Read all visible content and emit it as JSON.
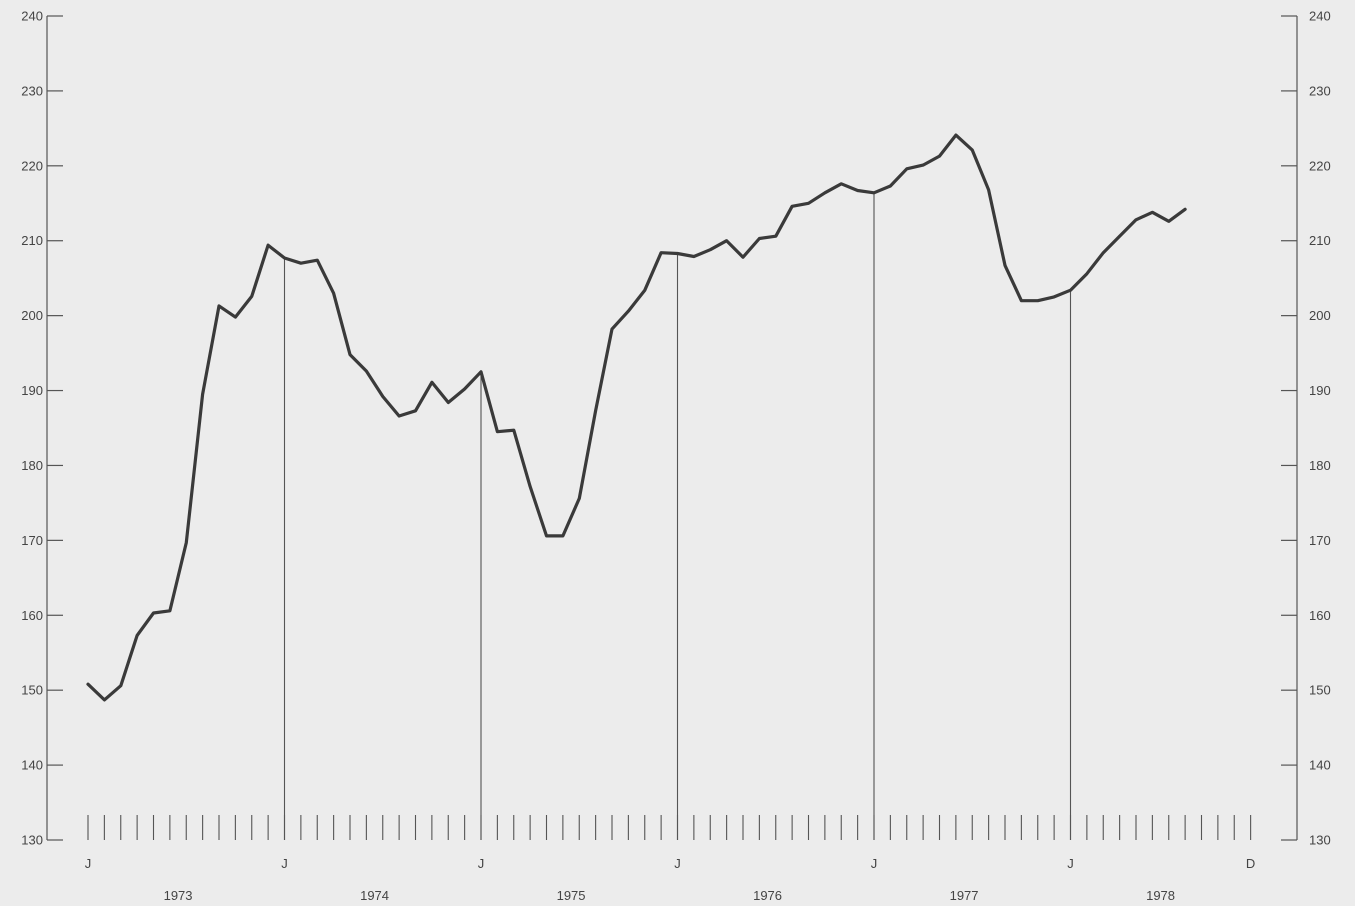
{
  "chart_data": {
    "type": "line",
    "title": "",
    "xlabel": "",
    "ylabel": "",
    "ylim": [
      130,
      240
    ],
    "yticks": [
      130,
      140,
      150,
      160,
      170,
      180,
      190,
      200,
      210,
      220,
      230,
      240
    ],
    "y_axes": [
      "left",
      "right"
    ],
    "grid": false,
    "year_dividers_at_january": true,
    "x_start": "1973-01",
    "x_end": "1978-12",
    "month_labels": [
      {
        "month": "1973-01",
        "label": "J"
      },
      {
        "month": "1974-01",
        "label": "J"
      },
      {
        "month": "1975-01",
        "label": "J"
      },
      {
        "month": "1976-01",
        "label": "J"
      },
      {
        "month": "1977-01",
        "label": "J"
      },
      {
        "month": "1978-01",
        "label": "J"
      },
      {
        "month": "1978-12",
        "label": "D"
      }
    ],
    "year_labels": [
      "1973",
      "1974",
      "1975",
      "1976",
      "1977",
      "1978"
    ],
    "series": [
      {
        "color": "#3a3a3a",
        "x": [
          "1973-01",
          "1973-02",
          "1973-03",
          "1973-04",
          "1973-05",
          "1973-06",
          "1973-07",
          "1973-08",
          "1973-09",
          "1973-10",
          "1973-11",
          "1973-12",
          "1974-01",
          "1974-02",
          "1974-03",
          "1974-04",
          "1974-05",
          "1974-06",
          "1974-07",
          "1974-08",
          "1974-09",
          "1974-10",
          "1974-11",
          "1974-12",
          "1975-01",
          "1975-02",
          "1975-03",
          "1975-04",
          "1975-05",
          "1975-06",
          "1975-07",
          "1975-08",
          "1975-09",
          "1975-10",
          "1975-11",
          "1975-12",
          "1976-01",
          "1976-02",
          "1976-03",
          "1976-04",
          "1976-05",
          "1976-06",
          "1976-07",
          "1976-08",
          "1976-09",
          "1976-10",
          "1976-11",
          "1976-12",
          "1977-01",
          "1977-02",
          "1977-03",
          "1977-04",
          "1977-05",
          "1977-06",
          "1977-07",
          "1977-08",
          "1977-09",
          "1977-10",
          "1977-11",
          "1977-12",
          "1978-01",
          "1978-02",
          "1978-03",
          "1978-04",
          "1978-05",
          "1978-06",
          "1978-07",
          "1978-08"
        ],
        "values": [
          150.8,
          148.7,
          150.6,
          157.3,
          160.3,
          160.6,
          169.7,
          189.5,
          201.3,
          199.8,
          202.6,
          209.4,
          207.7,
          207.0,
          207.4,
          203.0,
          194.8,
          192.6,
          189.2,
          186.6,
          187.3,
          191.1,
          188.4,
          190.2,
          192.5,
          184.5,
          184.7,
          177.2,
          170.6,
          170.6,
          175.6,
          187.3,
          198.2,
          200.6,
          203.4,
          208.4,
          208.3,
          207.9,
          208.8,
          210.0,
          207.8,
          210.3,
          210.6,
          214.6,
          215.0,
          216.4,
          217.6,
          216.7,
          216.4,
          217.3,
          219.6,
          220.1,
          221.3,
          224.1,
          222.1,
          216.8,
          206.7,
          202.0,
          202.0,
          202.5,
          203.4,
          205.6,
          208.4,
          210.6,
          212.8,
          213.8,
          212.6,
          214.2
        ]
      }
    ]
  }
}
